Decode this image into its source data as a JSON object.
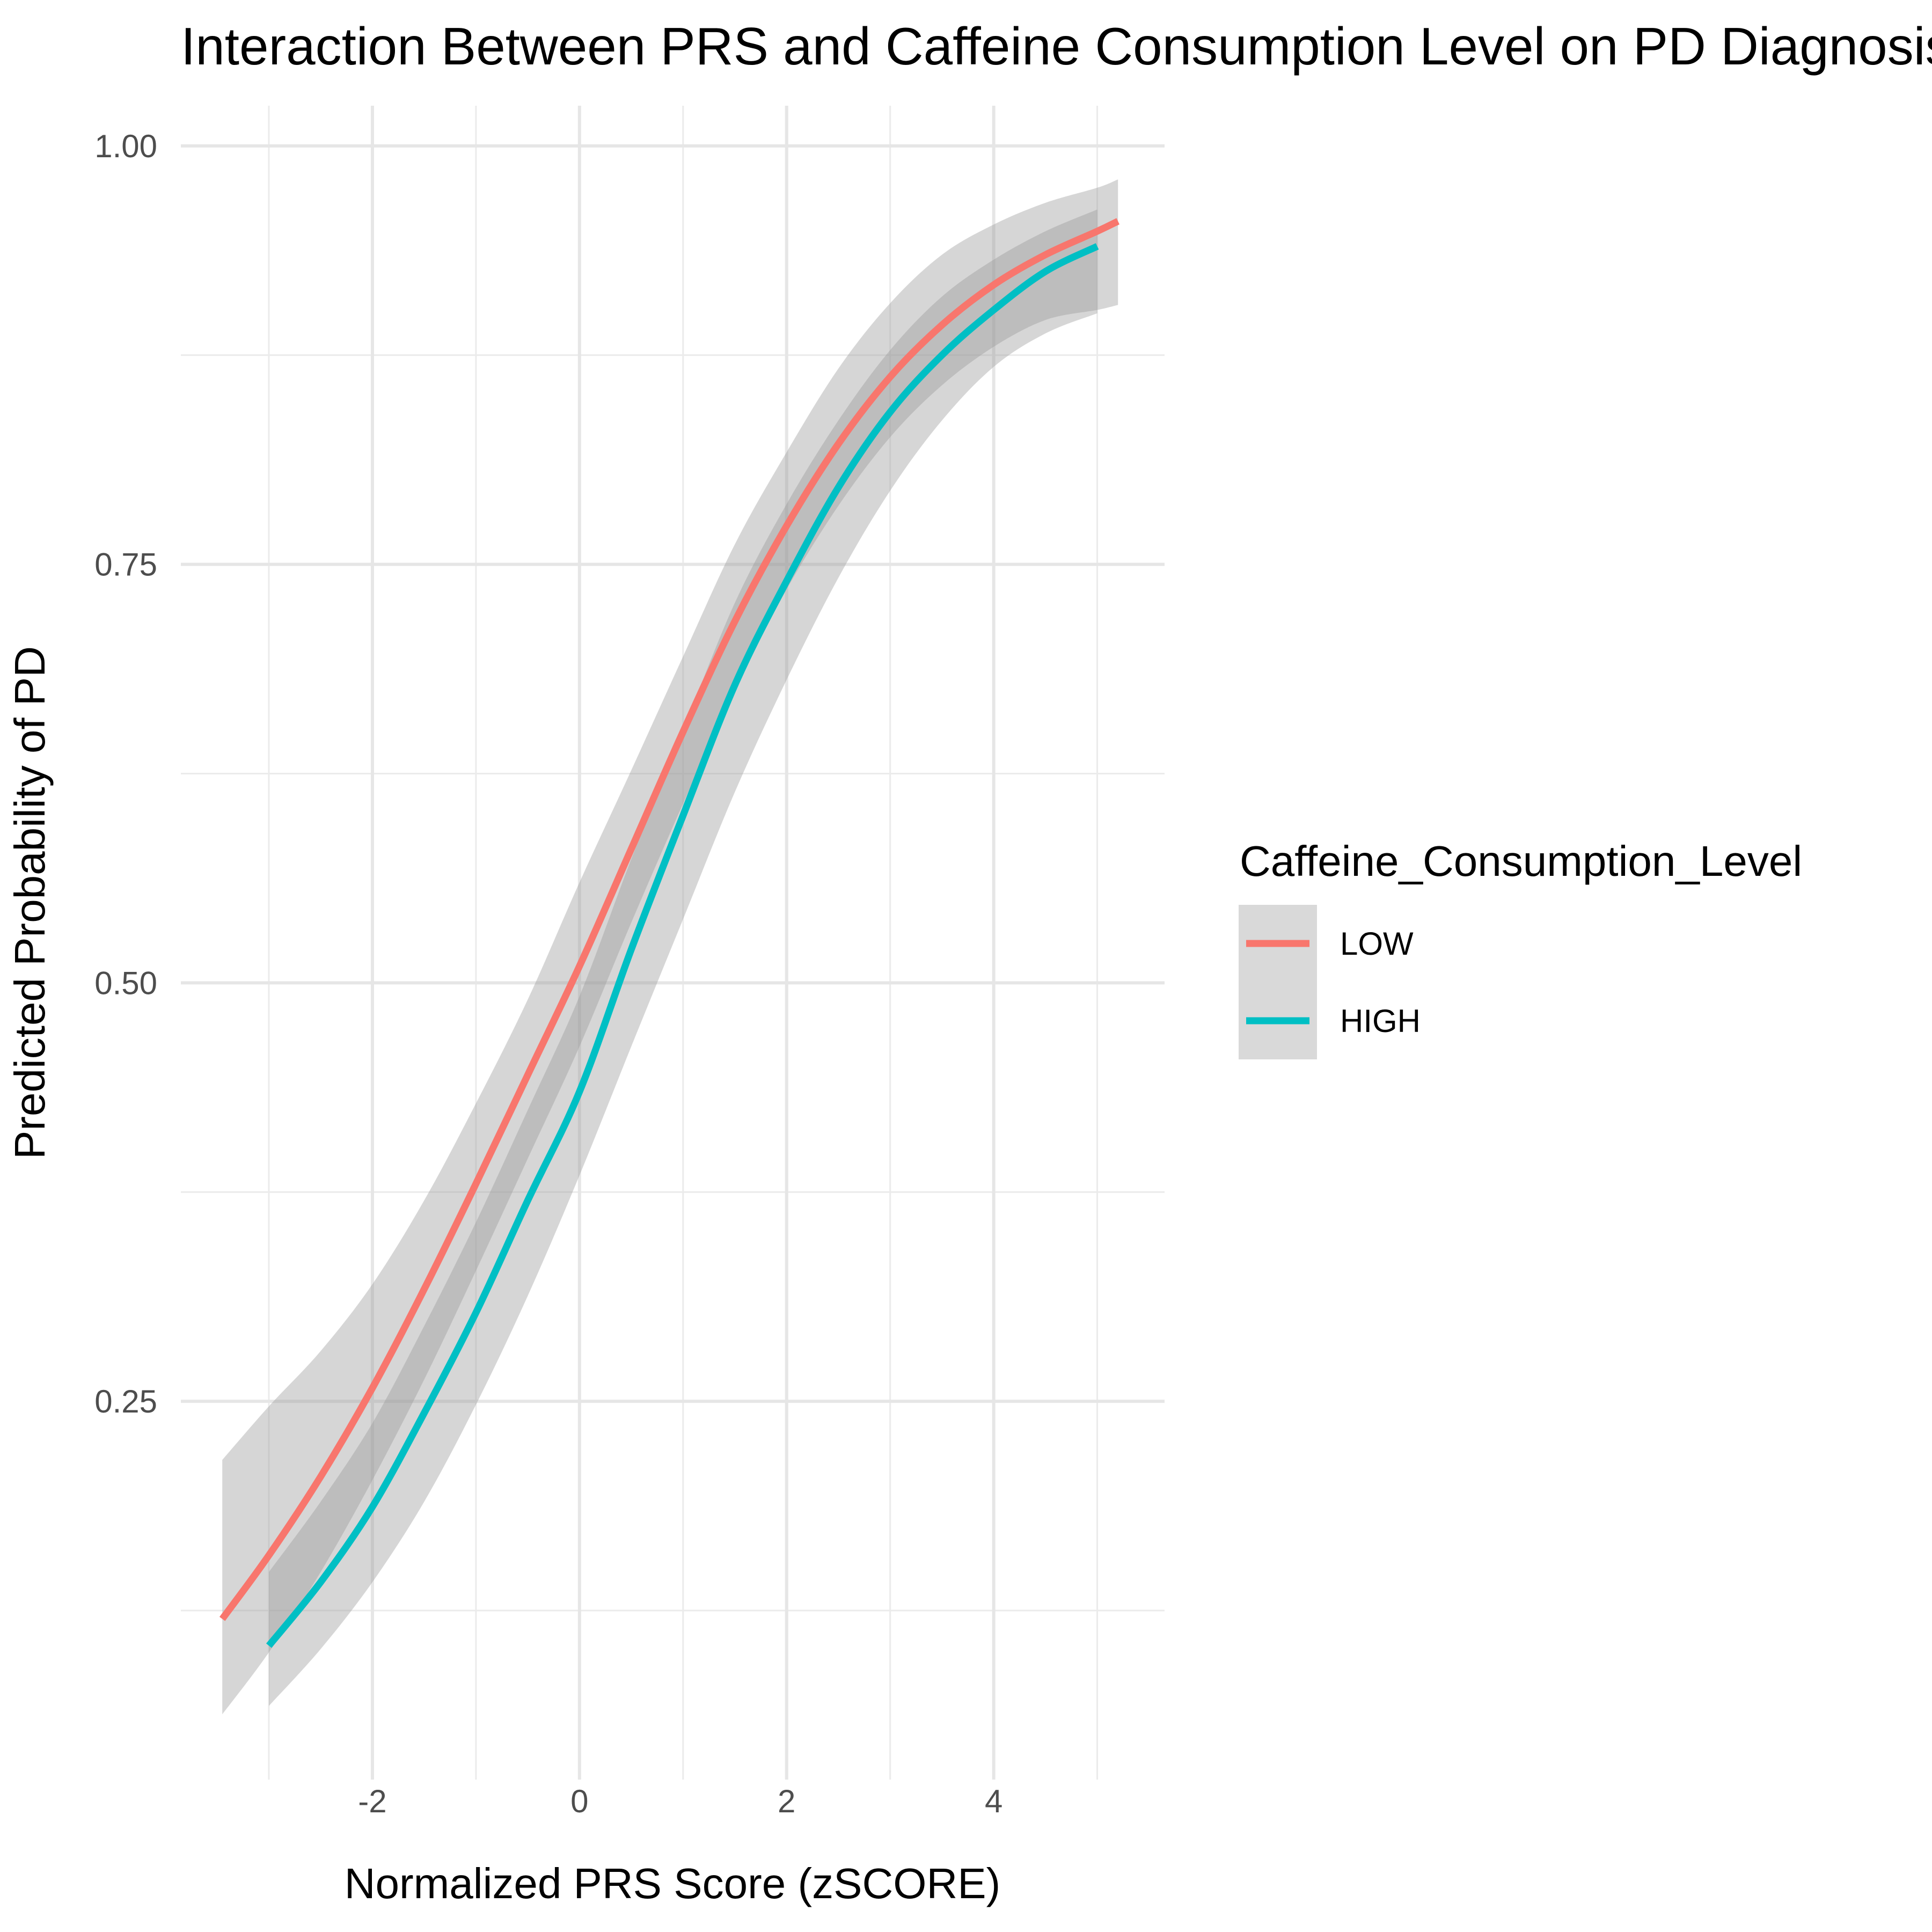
{
  "chart_data": {
    "type": "line",
    "title": "Interaction Between PRS and Caffeine Consumption Level on PD Diagnosis",
    "xlabel": "Normalized PRS Score (zSCORE)",
    "ylabel": "Predicted Probability of PD",
    "xlim": [
      -3.85,
      5.65
    ],
    "ylim": [
      0.024,
      1.024
    ],
    "x_ticks": [
      -2,
      0,
      2,
      4
    ],
    "x_tick_labels": [
      "-2",
      "0",
      "2",
      "4"
    ],
    "y_ticks": [
      0.25,
      0.5,
      0.75,
      1.0
    ],
    "y_tick_labels": [
      "0.25",
      "0.50",
      "0.75",
      "1.00"
    ],
    "grid": true,
    "legend": {
      "title": "Caffeine_Consumption_Level",
      "position": "right"
    },
    "series": [
      {
        "name": "LOW",
        "color": "#F8766D",
        "x": [
          -3.45,
          -3.0,
          -2.5,
          -2.0,
          -1.5,
          -1.0,
          -0.5,
          0.0,
          0.5,
          1.0,
          1.5,
          2.0,
          2.5,
          3.0,
          3.5,
          4.0,
          4.5,
          5.0,
          5.2
        ],
        "y": [
          0.12,
          0.158,
          0.205,
          0.258,
          0.317,
          0.38,
          0.445,
          0.51,
          0.58,
          0.65,
          0.716,
          0.773,
          0.822,
          0.862,
          0.893,
          0.917,
          0.935,
          0.949,
          0.955
        ],
        "lower": [
          0.063,
          0.1,
          0.148,
          0.203,
          0.263,
          0.328,
          0.395,
          0.462,
          0.536,
          0.607,
          0.675,
          0.735,
          0.785,
          0.826,
          0.857,
          0.88,
          0.896,
          0.902,
          0.905
        ],
        "upper": [
          0.215,
          0.247,
          0.28,
          0.32,
          0.37,
          0.428,
          0.49,
          0.56,
          0.627,
          0.695,
          0.762,
          0.817,
          0.867,
          0.906,
          0.935,
          0.953,
          0.966,
          0.975,
          0.98
        ]
      },
      {
        "name": "HIGH",
        "color": "#00BFC4",
        "x": [
          -3.0,
          -2.5,
          -2.0,
          -1.5,
          -1.0,
          -0.5,
          0.0,
          0.5,
          1.0,
          1.5,
          2.0,
          2.5,
          3.0,
          3.5,
          4.0,
          4.5,
          5.0
        ],
        "y": [
          0.104,
          0.142,
          0.187,
          0.243,
          0.303,
          0.37,
          0.435,
          0.52,
          0.6,
          0.678,
          0.74,
          0.796,
          0.841,
          0.875,
          0.902,
          0.925,
          0.94
        ],
        "lower": [
          0.068,
          0.102,
          0.142,
          0.19,
          0.248,
          0.313,
          0.385,
          0.462,
          0.538,
          0.614,
          0.681,
          0.742,
          0.794,
          0.836,
          0.868,
          0.888,
          0.9
        ],
        "upper": [
          0.148,
          0.19,
          0.237,
          0.295,
          0.357,
          0.424,
          0.492,
          0.574,
          0.651,
          0.727,
          0.786,
          0.836,
          0.878,
          0.91,
          0.932,
          0.949,
          0.962
        ]
      }
    ]
  }
}
